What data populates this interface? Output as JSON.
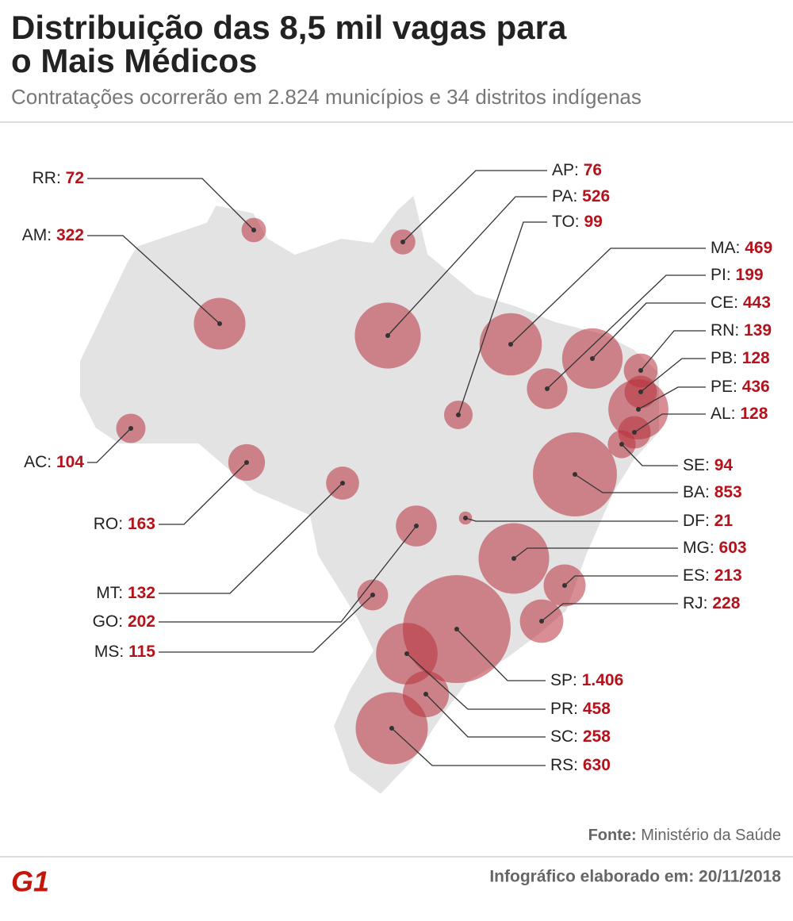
{
  "header": {
    "title_line1": "Distribuição das 8,5 mil vagas para",
    "title_line2": "o Mais Médicos",
    "subtitle": "Contratações ocorrerão em 2.824 municípios e 34 distritos indígenas"
  },
  "chart_data": {
    "type": "bubble-map",
    "color": "#b8323d",
    "categories": [
      "RR:",
      "AM:",
      "AC:",
      "RO:",
      "MT:",
      "GO:",
      "MS:",
      "AP:",
      "PA:",
      "TO:",
      "MA:",
      "PI:",
      "CE:",
      "RN:",
      "PB:",
      "PE:",
      "AL:",
      "SE:",
      "BA:",
      "DF:",
      "MG:",
      "ES:",
      "RJ:",
      "SP:",
      "PR:",
      "SC:",
      "RS:"
    ],
    "values": [
      72,
      322,
      104,
      163,
      132,
      202,
      115,
      76,
      526,
      99,
      469,
      199,
      443,
      139,
      128,
      436,
      128,
      94,
      853,
      21,
      603,
      213,
      228,
      1406,
      458,
      258,
      630
    ],
    "value_labels": [
      "72",
      "322",
      "104",
      "163",
      "132",
      "202",
      "115",
      "76",
      "526",
      "99",
      "469",
      "199",
      "443",
      "139",
      "128",
      "436",
      "128",
      "94",
      "853",
      "21",
      "603",
      "213",
      "228",
      "1.406",
      "458",
      "258",
      "630"
    ]
  },
  "footer": {
    "source_label": "Fonte:",
    "source": "Ministério da Saúde",
    "logo": "G1",
    "credit": "Infográfico elaborado em: 20/11/2018"
  }
}
